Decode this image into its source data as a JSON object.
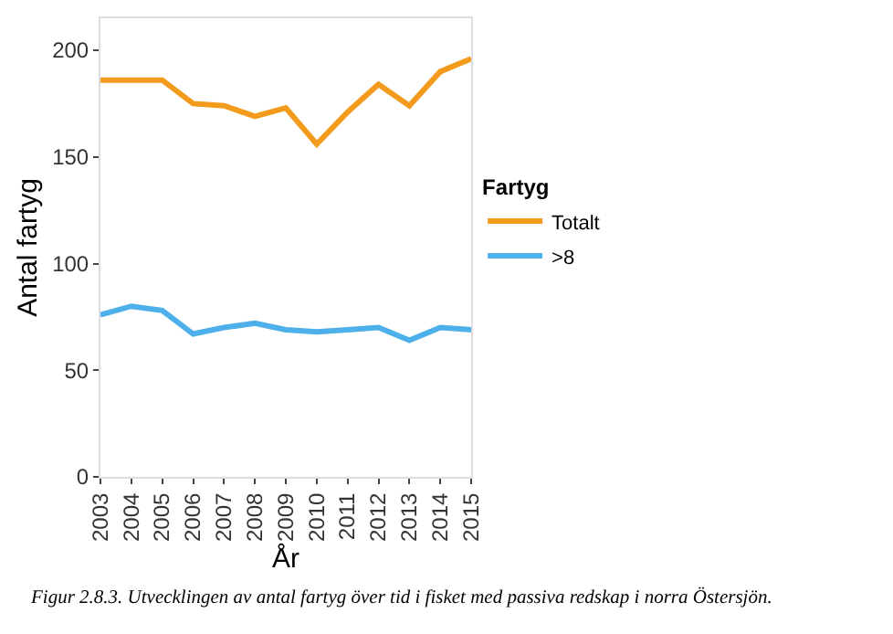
{
  "chart_data": {
    "type": "line",
    "xlabel": "År",
    "ylabel": "Antal fartyg",
    "legend_title": "Fartyg",
    "x": [
      2003,
      2004,
      2005,
      2006,
      2007,
      2008,
      2009,
      2010,
      2011,
      2012,
      2013,
      2014,
      2015
    ],
    "series": [
      {
        "name": "Totalt",
        "color": "#f29b1d",
        "values": [
          186,
          186,
          186,
          175,
          174,
          169,
          173,
          156,
          171,
          184,
          174,
          190,
          196
        ]
      },
      {
        "name": ">8",
        "color": "#4db0ea",
        "values": [
          76,
          80,
          78,
          67,
          70,
          72,
          69,
          68,
          69,
          70,
          64,
          70,
          69
        ]
      }
    ],
    "xlim": [
      2003,
      2015
    ],
    "xticks": [
      2003,
      2004,
      2005,
      2006,
      2007,
      2008,
      2009,
      2010,
      2011,
      2012,
      2013,
      2014,
      2015
    ],
    "ylim": [
      0,
      215
    ],
    "yticks": [
      0,
      50,
      100,
      150,
      200
    ],
    "legend": "right",
    "marker": "none",
    "line_style": "solid",
    "annotations": [
      "Figur 2.8.3. Utvecklingen av antal fartyg över tid i fisket med passiva redskap i norra Östersjön."
    ]
  }
}
